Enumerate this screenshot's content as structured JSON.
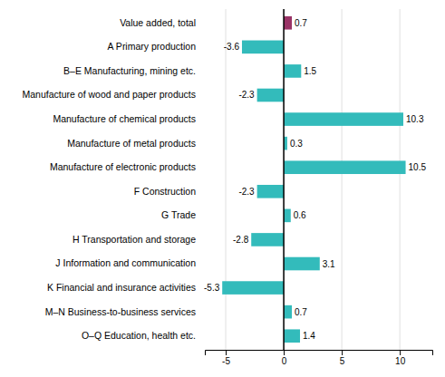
{
  "chart_data": {
    "type": "bar",
    "orientation": "horizontal",
    "categories": [
      "Value added, total",
      "A Primary production",
      "B–E Manufacturing, mining etc.",
      "Manufacture of wood and paper products",
      "Manufacture of chemical products",
      "Manufacture of metal products",
      "Manufacture of electronic products",
      "F Construction",
      "G Trade",
      "H Transportation and storage",
      "J Information and communication",
      "K Financial and insurance activities",
      "M–N Business-to-business services",
      "O–Q Education, health etc."
    ],
    "values": [
      0.7,
      -3.6,
      1.5,
      -2.3,
      10.3,
      0.3,
      10.5,
      -2.3,
      0.6,
      -2.8,
      3.1,
      -5.3,
      0.7,
      1.4
    ],
    "colors": [
      "#993366",
      "#33bbbb",
      "#33bbbb",
      "#33bbbb",
      "#33bbbb",
      "#33bbbb",
      "#33bbbb",
      "#33bbbb",
      "#33bbbb",
      "#33bbbb",
      "#33bbbb",
      "#33bbbb",
      "#33bbbb",
      "#33bbbb"
    ],
    "xlim": [
      -6.8,
      12.8
    ],
    "xticks": [
      -5,
      0,
      5,
      10
    ],
    "grid": true,
    "data_labels": true
  }
}
